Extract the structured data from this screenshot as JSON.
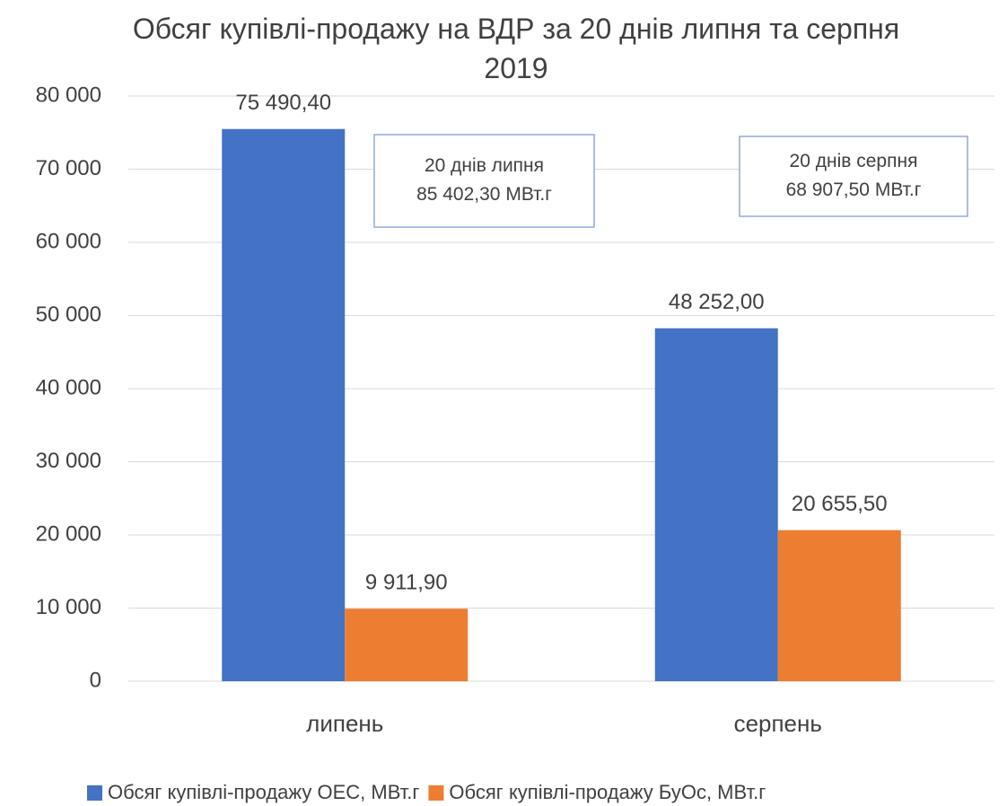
{
  "chart_data": {
    "type": "bar",
    "title": "Обсяг купівлі-продажу на ВДР за 20 днів липня та серпня 2019",
    "categories": [
      "липень",
      "серпень"
    ],
    "series": [
      {
        "name": "Обсяг купівлі-продажу ОЕС, МВт.г",
        "color": "#4472c4",
        "values": [
          75490.4,
          48252
        ],
        "value_labels": [
          "75 490,40",
          "48 252,00"
        ]
      },
      {
        "name": "Обсяг купівлі-продажу БуОс, МВт.г",
        "color": "#ed7d31",
        "values": [
          9911.9,
          20655.5
        ],
        "value_labels": [
          "9 911,90",
          "20 655,50"
        ]
      }
    ],
    "annotations": [
      [
        "20 днів липня",
        "85 402,30 МВт.г"
      ],
      [
        "20 днів серпня",
        "68 907,50 МВт.г"
      ]
    ],
    "ylim": [
      0,
      80000
    ],
    "yticks": [
      0,
      {
        "value": 10000,
        "label": "10 000"
      },
      {
        "value": 20000,
        "label": "20 000"
      },
      {
        "value": 30000,
        "label": "30 000"
      },
      {
        "value": 40000,
        "label": "40 000"
      },
      {
        "value": 50000,
        "label": "50 000"
      },
      {
        "value": 60000,
        "label": "60 000"
      },
      {
        "value": 70000,
        "label": "70 000"
      },
      {
        "value": 80000,
        "label": "80 000"
      }
    ],
    "grid": true,
    "legend": "bottom"
  }
}
